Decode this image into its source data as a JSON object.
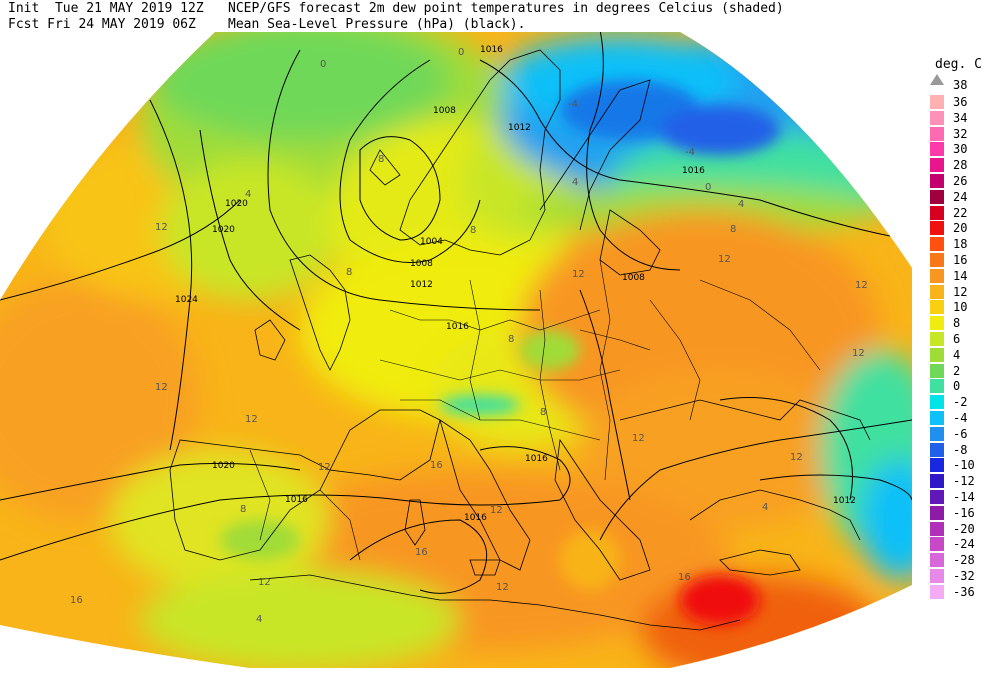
{
  "header": {
    "init_line": "Init  Tue 21 MAY 2019 12Z",
    "fcst_line": "Fcst Fri 24 MAY 2019 06Z",
    "title_line1": "NCEP/GFS forecast 2m dew point temperatures in degrees Celcius (shaded)",
    "title_line2": "Mean Sea-Level Pressure (hPa) (black)."
  },
  "legend": {
    "units": "deg. C",
    "max_label": "38",
    "entries": [
      {
        "label": "36",
        "color": "#ffb0b0"
      },
      {
        "label": "34",
        "color": "#ff90b8"
      },
      {
        "label": "32",
        "color": "#ff6ab0"
      },
      {
        "label": "30",
        "color": "#ff3aa8"
      },
      {
        "label": "28",
        "color": "#e8158c"
      },
      {
        "label": "26",
        "color": "#c4006e"
      },
      {
        "label": "24",
        "color": "#a00040"
      },
      {
        "label": "22",
        "color": "#d80020"
      },
      {
        "label": "20",
        "color": "#f01010"
      },
      {
        "label": "18",
        "color": "#ff5010"
      },
      {
        "label": "16",
        "color": "#f87818"
      },
      {
        "label": "14",
        "color": "#f89620"
      },
      {
        "label": "12",
        "color": "#f8b418"
      },
      {
        "label": "10",
        "color": "#f8d010"
      },
      {
        "label": "8",
        "color": "#f0ec10"
      },
      {
        "label": "6",
        "color": "#c8e628"
      },
      {
        "label": "4",
        "color": "#a0dc38"
      },
      {
        "label": "2",
        "color": "#70d858"
      },
      {
        "label": "0",
        "color": "#40e0a0"
      },
      {
        "label": "-2",
        "color": "#00e4e8"
      },
      {
        "label": "-4",
        "color": "#10c0f8"
      },
      {
        "label": "-6",
        "color": "#2090f0"
      },
      {
        "label": "-8",
        "color": "#2060e8"
      },
      {
        "label": "-10",
        "color": "#1828e0"
      },
      {
        "label": "-12",
        "color": "#3018c8"
      },
      {
        "label": "-14",
        "color": "#6018b8"
      },
      {
        "label": "-16",
        "color": "#8c1ca8"
      },
      {
        "label": "-20",
        "color": "#b030b8"
      },
      {
        "label": "-24",
        "color": "#c848c8"
      },
      {
        "label": "-28",
        "color": "#d868d8"
      },
      {
        "label": "-32",
        "color": "#e888e8"
      },
      {
        "label": "-36",
        "color": "#f4aaf4"
      }
    ]
  },
  "map": {
    "isobar_labels": [
      "1016",
      "1012",
      "1008",
      "1016",
      "1020",
      "1020",
      "1004",
      "1008",
      "1012",
      "1024",
      "1016",
      "1008",
      "1020",
      "1016",
      "1016",
      "1016",
      "1012"
    ],
    "temp_labels": [
      "0",
      "0",
      "-4",
      "-4",
      "0",
      "4",
      "8",
      "8",
      "4",
      "4",
      "8",
      "12",
      "12",
      "12",
      "12",
      "12",
      "8",
      "12",
      "8",
      "12",
      "12",
      "12",
      "8",
      "12",
      "16",
      "8",
      "12",
      "16",
      "16",
      "12",
      "4",
      "12",
      "16",
      "4"
    ]
  }
}
